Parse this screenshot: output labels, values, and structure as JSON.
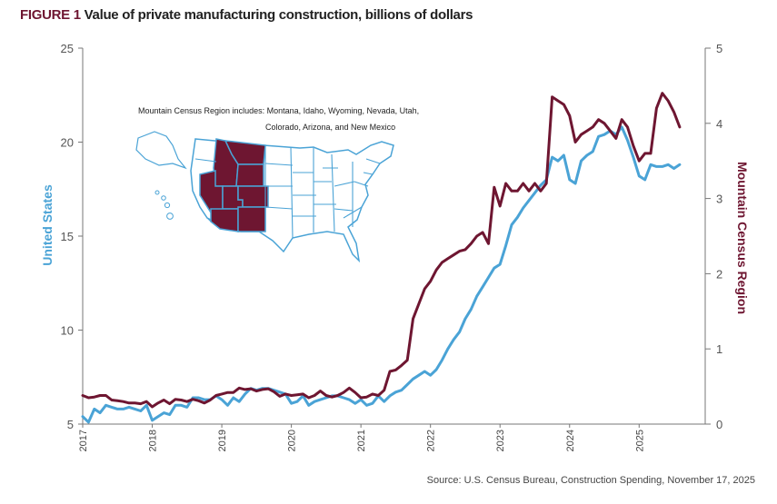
{
  "figure": {
    "label": "FIGURE 1",
    "title": "Value of private manufacturing construction, billions of dollars",
    "source": "Source: U.S. Census Bureau, Construction Spending, November 17, 2025"
  },
  "map_note": {
    "line1": "Mountain Census Region includes: Montana, Idaho, Wyoming, Nevada, Utah,",
    "line2": "Colorado, Arizona, and New Mexico"
  },
  "colors": {
    "us": "#4aa3d6",
    "mountain": "#6e1631"
  },
  "chart_data": {
    "type": "line",
    "title": "Value of private manufacturing construction, billions of dollars",
    "xlabel": "",
    "x_ticks": [
      "2017",
      "2018",
      "2019",
      "2020",
      "2021",
      "2022",
      "2023",
      "2024",
      "2025"
    ],
    "x_range": [
      2017.0,
      2025.95
    ],
    "y_left": {
      "label": "United States",
      "ylim": [
        5,
        25
      ],
      "ticks": [
        5,
        10,
        15,
        20,
        25
      ]
    },
    "y_right": {
      "label": "Mountain Census Region",
      "ylim": [
        0,
        5
      ],
      "ticks": [
        0,
        1,
        2,
        3,
        4,
        5
      ]
    },
    "grid": false,
    "start": "2017-01",
    "frequency": "monthly",
    "series": [
      {
        "name": "United States",
        "axis": "left",
        "color": "#4aa3d6",
        "values": [
          5.4,
          5.1,
          5.8,
          5.6,
          6.0,
          5.9,
          5.8,
          5.8,
          5.9,
          5.8,
          5.7,
          6.0,
          5.2,
          5.4,
          5.6,
          5.5,
          6.0,
          6.0,
          5.9,
          6.4,
          6.4,
          6.3,
          6.3,
          6.5,
          6.3,
          6.0,
          6.4,
          6.2,
          6.6,
          6.9,
          6.8,
          6.9,
          6.9,
          6.8,
          6.7,
          6.6,
          6.1,
          6.2,
          6.5,
          6.0,
          6.2,
          6.3,
          6.4,
          6.5,
          6.5,
          6.4,
          6.3,
          6.1,
          6.3,
          6.0,
          6.1,
          6.5,
          6.2,
          6.5,
          6.7,
          6.8,
          7.1,
          7.4,
          7.6,
          7.8,
          7.6,
          7.9,
          8.4,
          9.0,
          9.5,
          9.9,
          10.6,
          11.1,
          11.8,
          12.3,
          12.8,
          13.3,
          13.5,
          14.5,
          15.6,
          16.0,
          16.5,
          16.9,
          17.3,
          17.7,
          18.0,
          19.2,
          19.0,
          19.3,
          18.0,
          17.8,
          19.0,
          19.3,
          19.5,
          20.3,
          20.4,
          20.6,
          20.4,
          20.8,
          20.1,
          19.2,
          18.2,
          18.0,
          18.8,
          18.7,
          18.7,
          18.8,
          18.6,
          18.8
        ]
      },
      {
        "name": "Mountain Census Region",
        "axis": "right",
        "color": "#6e1631",
        "values": [
          0.38,
          0.35,
          0.36,
          0.38,
          0.38,
          0.32,
          0.31,
          0.3,
          0.28,
          0.28,
          0.27,
          0.3,
          0.23,
          0.28,
          0.32,
          0.27,
          0.33,
          0.32,
          0.3,
          0.33,
          0.31,
          0.28,
          0.32,
          0.38,
          0.4,
          0.42,
          0.42,
          0.48,
          0.46,
          0.47,
          0.44,
          0.46,
          0.47,
          0.43,
          0.37,
          0.4,
          0.38,
          0.39,
          0.4,
          0.35,
          0.38,
          0.44,
          0.38,
          0.36,
          0.38,
          0.42,
          0.48,
          0.42,
          0.35,
          0.36,
          0.4,
          0.38,
          0.45,
          0.7,
          0.72,
          0.78,
          0.85,
          1.4,
          1.6,
          1.8,
          1.9,
          2.05,
          2.15,
          2.2,
          2.25,
          2.3,
          2.32,
          2.4,
          2.5,
          2.55,
          2.4,
          3.15,
          2.9,
          3.2,
          3.1,
          3.1,
          3.2,
          3.1,
          3.2,
          3.1,
          3.2,
          4.35,
          4.3,
          4.25,
          4.1,
          3.75,
          3.85,
          3.9,
          3.95,
          4.05,
          4.0,
          3.9,
          3.8,
          4.05,
          3.95,
          3.7,
          3.5,
          3.6,
          3.6,
          4.2,
          4.4,
          4.3,
          4.15,
          3.95
        ]
      }
    ]
  }
}
